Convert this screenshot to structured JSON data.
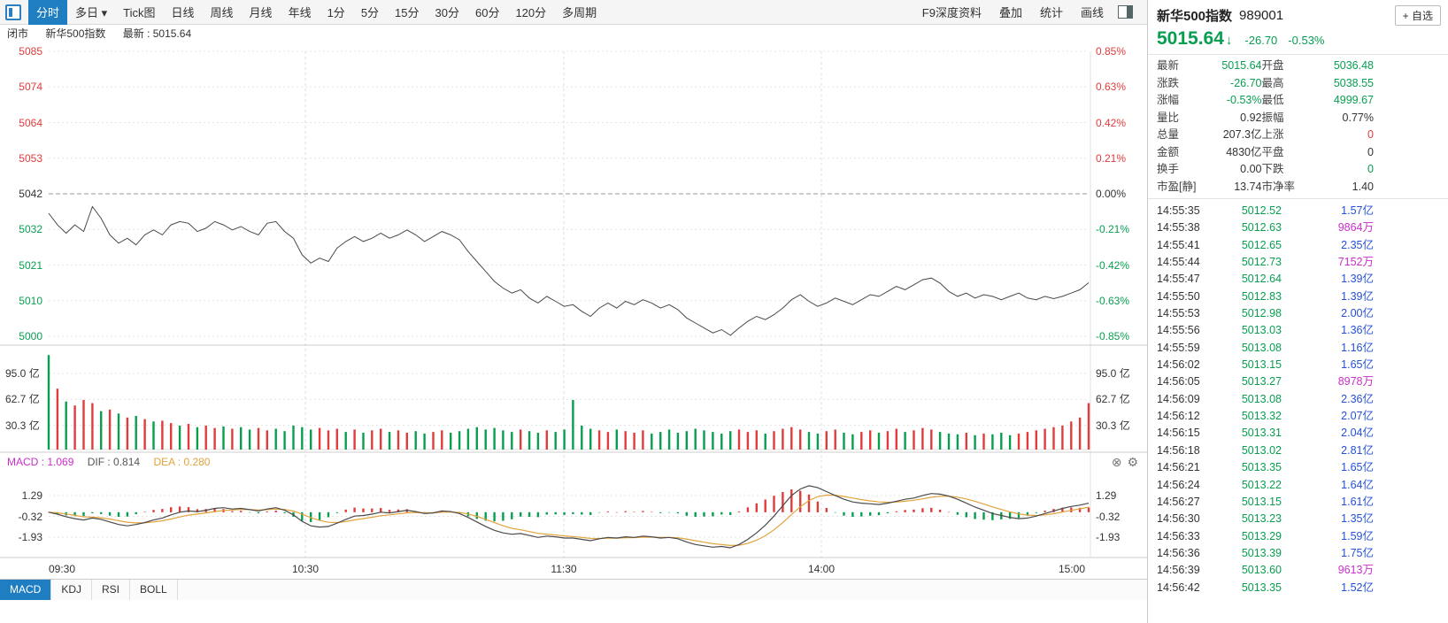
{
  "colors": {
    "up_red": "#e03c3c",
    "down_green": "#089e50",
    "neutral": "#333333",
    "vol_blue": "#2450d8",
    "vol_magenta": "#cb2ecb",
    "accent_blue": "#1f7ec2",
    "dif_line": "#4a4a4a",
    "dea_line": "#e2a33c",
    "macd_label_magenta": "#cb2ecb"
  },
  "toolbar": {
    "tabs": [
      {
        "label": "分时",
        "active": true
      },
      {
        "label": "多日",
        "caret": true
      },
      {
        "label": "Tick图"
      },
      {
        "label": "日线"
      },
      {
        "label": "周线"
      },
      {
        "label": "月线"
      },
      {
        "label": "年线"
      },
      {
        "label": "1分"
      },
      {
        "label": "5分"
      },
      {
        "label": "15分"
      },
      {
        "label": "30分"
      },
      {
        "label": "60分"
      },
      {
        "label": "120分"
      },
      {
        "label": "多周期"
      }
    ],
    "right_items": [
      "F9深度资料",
      "叠加",
      "统计",
      "画线"
    ]
  },
  "status": {
    "market": "闭市",
    "symbol": "新华500指数",
    "last": "最新 : 5015.64"
  },
  "chart_data": {
    "type": "line",
    "title": "新华500指数 989001 分时",
    "x_axis": [
      "09:30",
      "10:30",
      "11:30",
      "14:00",
      "15:00"
    ],
    "price_axis": {
      "labels": [
        "5085",
        "5074",
        "5064",
        "5053",
        "5042",
        "5032",
        "5021",
        "5010",
        "5000"
      ],
      "colors": [
        "r",
        "r",
        "r",
        "r",
        "k",
        "g",
        "g",
        "g",
        "g"
      ],
      "range": [
        4999.5,
        5085.2
      ]
    },
    "pct_axis": {
      "labels": [
        "0.85%",
        "0.63%",
        "0.42%",
        "0.21%",
        "0.00%",
        "-0.21%",
        "-0.42%",
        "-0.63%",
        "-0.85%"
      ]
    },
    "volume_axis": {
      "labels": [
        "95.0 亿",
        "62.7 亿",
        "30.3 亿"
      ],
      "values": [
        95.0,
        62.7,
        30.3
      ]
    },
    "macd_axis": {
      "labels": [
        "1.29",
        "-0.32",
        "-1.93"
      ],
      "values": [
        1.29,
        -0.32,
        -1.93
      ]
    },
    "macd_header": {
      "macd": "MACD : 1.069",
      "dif": "DIF : 0.814",
      "dea": "DEA : 0.280"
    },
    "series": {
      "price": [
        5036.5,
        5033,
        5030.5,
        5033,
        5031,
        5038.5,
        5035,
        5030,
        5027.5,
        5029,
        5027,
        5030,
        5031.5,
        5030,
        5033,
        5034,
        5033.5,
        5031,
        5032,
        5034,
        5033,
        5031.5,
        5032.5,
        5031,
        5030,
        5033.5,
        5034,
        5031,
        5029,
        5024,
        5021.5,
        5023,
        5022,
        5026,
        5028,
        5029.5,
        5028,
        5029,
        5030.5,
        5029,
        5030,
        5031.5,
        5030,
        5028,
        5029.5,
        5031,
        5030,
        5028.5,
        5025,
        5022,
        5019,
        5016,
        5014,
        5012.5,
        5013.5,
        5011,
        5009.5,
        5011.5,
        5010,
        5008.5,
        5009,
        5007,
        5005.5,
        5008,
        5009.5,
        5008,
        5010,
        5009,
        5010.5,
        5009.5,
        5008,
        5009,
        5007.5,
        5005,
        5003.5,
        5002,
        5000.5,
        5001.5,
        4999.8,
        5002,
        5004,
        5005.5,
        5004.5,
        5006,
        5008,
        5010.5,
        5012,
        5010,
        5008.5,
        5009.5,
        5011,
        5010,
        5009,
        5010.5,
        5012,
        5011.5,
        5013,
        5014.5,
        5013.5,
        5015,
        5016.5,
        5017,
        5015.5,
        5013,
        5011.5,
        5012.5,
        5011,
        5012,
        5011.5,
        5010.5,
        5011.5,
        5012.5,
        5011,
        5010.5,
        5011.5,
        5010.8,
        5011.5,
        5012.5,
        5013.5,
        5015.6
      ],
      "volume": [
        118,
        76,
        60,
        55,
        62,
        58,
        48,
        50,
        45,
        40,
        42,
        38,
        35,
        36,
        33,
        30,
        32,
        28,
        30,
        27,
        29,
        26,
        28,
        25,
        27,
        24,
        26,
        23,
        30,
        28,
        25,
        27,
        24,
        26,
        22,
        25,
        21,
        24,
        26,
        22,
        24,
        21,
        23,
        20,
        22,
        24,
        21,
        23,
        26,
        28,
        25,
        27,
        24,
        22,
        25,
        23,
        21,
        24,
        22,
        25,
        62,
        30,
        26,
        24,
        22,
        25,
        23,
        21,
        24,
        20,
        22,
        25,
        21,
        23,
        26,
        24,
        22,
        20,
        23,
        25,
        22,
        24,
        20,
        23,
        26,
        28,
        25,
        22,
        20,
        23,
        25,
        21,
        19,
        22,
        24,
        21,
        23,
        26,
        22,
        24,
        27,
        25,
        22,
        20,
        19,
        21,
        18,
        20,
        19,
        21,
        18,
        20,
        22,
        24,
        26,
        28,
        30,
        35,
        40,
        58
      ],
      "volume_colors": "grgrrrgrgrgrgrrgrgrrgrggrrgggggrrrgrgrrgrrggrrggggggggrggrgggggrrgrrrggggggggggrrrgrrrrggrrggrrgrrgrrrgggrgrgggrrrrrrrrr",
      "dif": [
        0.0,
        -0.15,
        -0.35,
        -0.5,
        -0.6,
        -0.45,
        -0.55,
        -0.75,
        -0.95,
        -1.05,
        -0.95,
        -0.8,
        -0.6,
        -0.45,
        -0.2,
        0.0,
        0.1,
        0.05,
        0.15,
        0.3,
        0.35,
        0.25,
        0.3,
        0.2,
        0.1,
        0.25,
        0.35,
        0.15,
        -0.2,
        -0.7,
        -1.05,
        -1.15,
        -1.1,
        -0.85,
        -0.55,
        -0.3,
        -0.25,
        -0.15,
        0.0,
        -0.05,
        0.05,
        0.15,
        0.05,
        -0.1,
        -0.05,
        0.1,
        0.05,
        -0.1,
        -0.4,
        -0.75,
        -1.1,
        -1.4,
        -1.6,
        -1.7,
        -1.65,
        -1.8,
        -1.95,
        -1.85,
        -1.9,
        -2.0,
        -2.0,
        -2.1,
        -2.2,
        -2.05,
        -1.95,
        -2.0,
        -1.9,
        -1.95,
        -1.85,
        -1.9,
        -2.0,
        -1.95,
        -2.05,
        -2.3,
        -2.5,
        -2.6,
        -2.7,
        -2.65,
        -2.75,
        -2.5,
        -2.1,
        -1.6,
        -1.0,
        -0.3,
        0.5,
        1.3,
        1.8,
        2.05,
        1.9,
        1.6,
        1.3,
        1.0,
        0.8,
        0.7,
        0.65,
        0.6,
        0.7,
        0.85,
        1.0,
        1.1,
        1.3,
        1.45,
        1.4,
        1.25,
        1.0,
        0.7,
        0.4,
        0.15,
        -0.1,
        -0.25,
        -0.4,
        -0.5,
        -0.45,
        -0.3,
        -0.1,
        0.1,
        0.3,
        0.45,
        0.55,
        0.7
      ]
    }
  },
  "indicator_tabs": {
    "items": [
      "MACD",
      "KDJ",
      "RSI",
      "BOLL"
    ],
    "active": "MACD"
  },
  "quote": {
    "name": "新华500指数",
    "code": "989001",
    "fav_label": "+ 自选",
    "last": "5015.64",
    "arrow": "↓",
    "change": "-26.70",
    "change_pct": "-0.53%",
    "grid": [
      [
        "最新",
        "5015.64",
        "g",
        "开盘",
        "5036.48",
        "g"
      ],
      [
        "涨跌",
        "-26.70",
        "g",
        "最高",
        "5038.55",
        "g"
      ],
      [
        "涨幅",
        "-0.53%",
        "g",
        "最低",
        "4999.67",
        "g"
      ],
      [
        "量比",
        "0.92",
        "k",
        "振幅",
        "0.77%",
        "k"
      ],
      [
        "总量",
        "207.3亿",
        "k",
        "上涨",
        "0",
        "r"
      ],
      [
        "金额",
        "4830亿",
        "k",
        "平盘",
        "0",
        "k"
      ],
      [
        "换手",
        "0.00",
        "k",
        "下跌",
        "0",
        "g"
      ],
      [
        "市盈[静]",
        "13.74",
        "k",
        "市净率",
        "1.40",
        "k"
      ]
    ],
    "ticks": [
      [
        "14:55:35",
        "5012.52",
        "1.57亿"
      ],
      [
        "14:55:38",
        "5012.63",
        "9864万"
      ],
      [
        "14:55:41",
        "5012.65",
        "2.35亿"
      ],
      [
        "14:55:44",
        "5012.73",
        "7152万"
      ],
      [
        "14:55:47",
        "5012.64",
        "1.39亿"
      ],
      [
        "14:55:50",
        "5012.83",
        "1.39亿"
      ],
      [
        "14:55:53",
        "5012.98",
        "2.00亿"
      ],
      [
        "14:55:56",
        "5013.03",
        "1.36亿"
      ],
      [
        "14:55:59",
        "5013.08",
        "1.16亿"
      ],
      [
        "14:56:02",
        "5013.15",
        "1.65亿"
      ],
      [
        "14:56:05",
        "5013.27",
        "8978万"
      ],
      [
        "14:56:09",
        "5013.08",
        "2.36亿"
      ],
      [
        "14:56:12",
        "5013.32",
        "2.07亿"
      ],
      [
        "14:56:15",
        "5013.31",
        "2.04亿"
      ],
      [
        "14:56:18",
        "5013.02",
        "2.81亿"
      ],
      [
        "14:56:21",
        "5013.35",
        "1.65亿"
      ],
      [
        "14:56:24",
        "5013.22",
        "1.64亿"
      ],
      [
        "14:56:27",
        "5013.15",
        "1.61亿"
      ],
      [
        "14:56:30",
        "5013.23",
        "1.35亿"
      ],
      [
        "14:56:33",
        "5013.29",
        "1.59亿"
      ],
      [
        "14:56:36",
        "5013.39",
        "1.75亿"
      ],
      [
        "14:56:39",
        "5013.60",
        "9613万"
      ],
      [
        "14:56:42",
        "5013.35",
        "1.52亿"
      ]
    ]
  }
}
